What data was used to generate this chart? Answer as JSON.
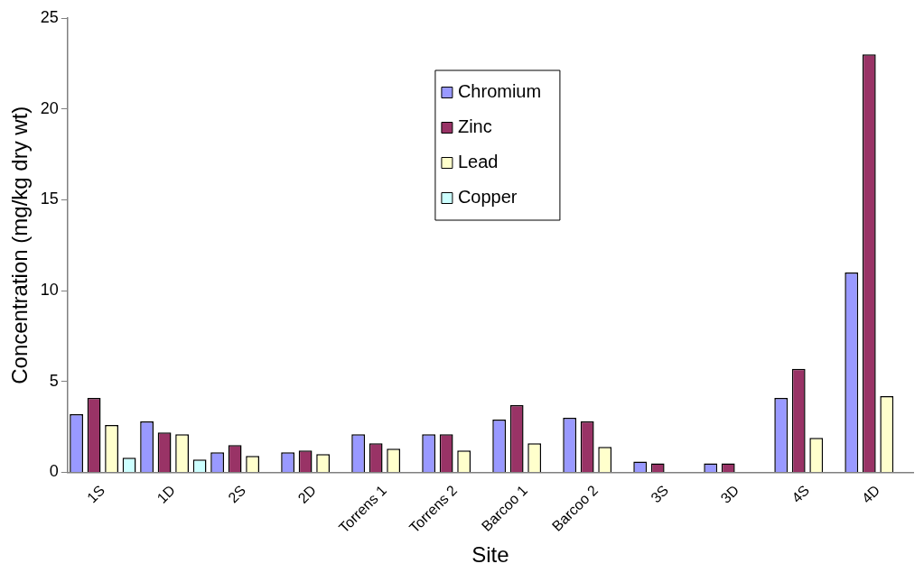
{
  "chart_data": {
    "type": "bar",
    "xlabel": "Site",
    "ylabel": "Concentration (mg/kg dry wt)",
    "categories": [
      "1S",
      "1D",
      "2S",
      "2D",
      "Torrens 1",
      "Torrens 2",
      "Barcoo 1",
      "Barcoo 2",
      "3S",
      "3D",
      "4S",
      "4D"
    ],
    "series": [
      {
        "name": "Chromium",
        "color": "#9999ff",
        "values": [
          3.2,
          2.8,
          1.1,
          1.1,
          2.1,
          2.1,
          2.9,
          3.0,
          0.6,
          0.5,
          4.1,
          11
        ]
      },
      {
        "name": "Zinc",
        "color": "#993366",
        "values": [
          4.1,
          2.2,
          1.5,
          1.2,
          1.6,
          2.1,
          3.7,
          2.8,
          0.5,
          0.5,
          5.7,
          23
        ]
      },
      {
        "name": "Lead",
        "color": "#ffffcc",
        "values": [
          2.6,
          2.1,
          0.9,
          1.0,
          1.3,
          1.2,
          1.6,
          1.4,
          null,
          null,
          1.9,
          4.2
        ]
      },
      {
        "name": "Copper",
        "color": "#ccffff",
        "values": [
          0.8,
          0.7,
          null,
          null,
          null,
          null,
          null,
          null,
          null,
          null,
          null,
          null
        ]
      }
    ],
    "ylim": [
      0,
      25
    ],
    "yticks": [
      0,
      5,
      10,
      15,
      20,
      25
    ],
    "grid": false,
    "legend": "top"
  }
}
